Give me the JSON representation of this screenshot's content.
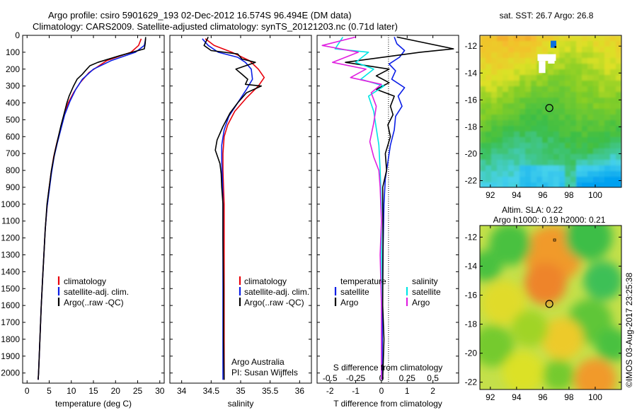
{
  "title_line1": "Argo profile: csiro 5901629_193 02-Dec-2012 16.574S 96.494E (DM data)",
  "title_line2": "Climatology: CARS2009. Satellite-adjusted climatology: synTS_20121203.nc (0.71d later)",
  "footer_stamp": "©IMOS 03-Aug-2017 23:25:38",
  "colors": {
    "climatology": "#e8000b",
    "satellite": "#0a1ee6",
    "argo": "#000000",
    "salinity_satellite": "#00e5e5",
    "salinity_argo": "#e020e0"
  },
  "chart_data": [
    {
      "id": "temperature",
      "type": "line",
      "xlabel": "temperature (deg C)",
      "ylim": [
        2060,
        0
      ],
      "xlim": [
        -1,
        31
      ],
      "xticks": [
        0,
        5,
        10,
        15,
        20,
        25,
        30
      ],
      "yticks": [
        0,
        100,
        200,
        300,
        400,
        500,
        600,
        700,
        800,
        900,
        1000,
        1100,
        1200,
        1300,
        1400,
        1500,
        1600,
        1700,
        1800,
        1900,
        2000
      ],
      "legend": [
        "climatology",
        "satellite-adj. clim.",
        "Argo(..raw -QC)"
      ],
      "series": [
        {
          "name": "climatology",
          "color": "climatology",
          "points": [
            [
              25.8,
              20
            ],
            [
              25.2,
              60
            ],
            [
              23.5,
              100
            ],
            [
              18,
              150
            ],
            [
              14,
              220
            ],
            [
              12,
              280
            ],
            [
              10.5,
              340
            ],
            [
              9.3,
              400
            ],
            [
              8.3,
              480
            ],
            [
              7.5,
              560
            ],
            [
              6.7,
              640
            ],
            [
              6,
              720
            ],
            [
              5.4,
              820
            ],
            [
              4.9,
              920
            ],
            [
              4.5,
              1020
            ],
            [
              4.1,
              1150
            ],
            [
              3.8,
              1300
            ],
            [
              3.5,
              1450
            ],
            [
              3.2,
              1600
            ],
            [
              2.9,
              1800
            ],
            [
              2.6,
              2000
            ],
            [
              2.5,
              2040
            ]
          ]
        },
        {
          "name": "satellite-adj. clim.",
          "color": "satellite",
          "points": [
            [
              26.8,
              20
            ],
            [
              26.5,
              60
            ],
            [
              24.5,
              100
            ],
            [
              19,
              150
            ],
            [
              15,
              200
            ],
            [
              12.5,
              260
            ],
            [
              11,
              320
            ],
            [
              9.7,
              390
            ],
            [
              8.5,
              470
            ],
            [
              7.6,
              560
            ],
            [
              6.8,
              640
            ],
            [
              6.1,
              720
            ],
            [
              5.5,
              820
            ],
            [
              5,
              920
            ],
            [
              4.5,
              1020
            ],
            [
              4.1,
              1150
            ],
            [
              3.8,
              1300
            ],
            [
              3.5,
              1450
            ],
            [
              3.2,
              1600
            ],
            [
              2.9,
              1800
            ],
            [
              2.6,
              2000
            ],
            [
              2.5,
              2040
            ]
          ]
        },
        {
          "name": "Argo(..raw -QC)",
          "color": "argo",
          "points": [
            [
              26.8,
              10
            ],
            [
              26.7,
              50
            ],
            [
              26.5,
              80
            ],
            [
              21,
              120
            ],
            [
              16,
              160
            ],
            [
              14.2,
              180
            ],
            [
              13.5,
              200
            ],
            [
              12.5,
              230
            ],
            [
              11.3,
              260
            ],
            [
              10.5,
              300
            ],
            [
              9.5,
              360
            ],
            [
              9,
              400
            ],
            [
              8.4,
              460
            ],
            [
              7.6,
              540
            ],
            [
              6.9,
              620
            ],
            [
              6.2,
              700
            ],
            [
              5.5,
              800
            ],
            [
              5,
              900
            ],
            [
              4.5,
              1000
            ],
            [
              4.1,
              1150
            ],
            [
              3.8,
              1300
            ],
            [
              3.5,
              1450
            ],
            [
              3.2,
              1600
            ],
            [
              2.9,
              1800
            ],
            [
              2.6,
              2000
            ],
            [
              2.5,
              2040
            ]
          ]
        }
      ]
    },
    {
      "id": "salinity",
      "type": "line",
      "xlabel": "salinity",
      "ylim": [
        2060,
        0
      ],
      "xlim": [
        33.8,
        36.2
      ],
      "xticks": [
        34,
        34.5,
        35,
        35.5,
        36
      ],
      "xtick_labels": [
        "34",
        "34.5",
        "35",
        "35.5",
        "36"
      ],
      "legend": [
        "climatology",
        "satellite-adj. clim.",
        "Argo(..raw -QC)"
      ],
      "annotation": [
        "Argo Australia",
        "PI: Susan Wijffels"
      ],
      "series": [
        {
          "name": "climatology",
          "color": "climatology",
          "points": [
            [
              34.4,
              20
            ],
            [
              34.55,
              60
            ],
            [
              34.85,
              100
            ],
            [
              35.15,
              150
            ],
            [
              35.3,
              200
            ],
            [
              35.4,
              250
            ],
            [
              35.3,
              300
            ],
            [
              35.1,
              370
            ],
            [
              34.9,
              450
            ],
            [
              34.78,
              530
            ],
            [
              34.72,
              600
            ],
            [
              34.7,
              700
            ],
            [
              34.7,
              800
            ],
            [
              34.71,
              900
            ],
            [
              34.72,
              1000
            ],
            [
              34.72,
              1200
            ],
            [
              34.72,
              1500
            ],
            [
              34.72,
              1800
            ],
            [
              34.72,
              2040
            ]
          ]
        },
        {
          "name": "satellite-adj. clim.",
          "color": "satellite",
          "points": [
            [
              34.35,
              20
            ],
            [
              34.45,
              60
            ],
            [
              34.62,
              100
            ],
            [
              34.95,
              130
            ],
            [
              35.08,
              160
            ],
            [
              35.18,
              200
            ],
            [
              35.2,
              260
            ],
            [
              35.1,
              320
            ],
            [
              34.95,
              400
            ],
            [
              34.8,
              480
            ],
            [
              34.72,
              560
            ],
            [
              34.68,
              650
            ],
            [
              34.68,
              750
            ],
            [
              34.69,
              850
            ],
            [
              34.7,
              1000
            ],
            [
              34.7,
              1200
            ],
            [
              34.7,
              1500
            ],
            [
              34.7,
              1800
            ],
            [
              34.7,
              2040
            ]
          ]
        },
        {
          "name": "Argo(..raw -QC)",
          "color": "argo",
          "points": [
            [
              34.45,
              10
            ],
            [
              34.38,
              60
            ],
            [
              34.5,
              90
            ],
            [
              34.95,
              110
            ],
            [
              35.02,
              140
            ],
            [
              35.25,
              160
            ],
            [
              34.92,
              200
            ],
            [
              35.02,
              230
            ],
            [
              35.12,
              260
            ],
            [
              35.08,
              290
            ],
            [
              35.35,
              300
            ],
            [
              35.1,
              340
            ],
            [
              34.95,
              400
            ],
            [
              34.82,
              460
            ],
            [
              34.7,
              540
            ],
            [
              34.6,
              620
            ],
            [
              34.57,
              680
            ],
            [
              34.65,
              760
            ],
            [
              34.67,
              820
            ],
            [
              34.68,
              900
            ],
            [
              34.7,
              1000
            ],
            [
              34.7,
              1200
            ],
            [
              34.71,
              1500
            ],
            [
              34.71,
              1800
            ],
            [
              34.72,
              2040
            ]
          ]
        }
      ]
    },
    {
      "id": "difference",
      "type": "line",
      "xlabel": "T difference from climatology",
      "xlabel_top": "S difference from climatology",
      "ylim": [
        2060,
        0
      ],
      "xlim": [
        -2.5,
        3
      ],
      "xticks": [
        -2,
        -1,
        0,
        1,
        2
      ],
      "xtick_labels": [
        "-2",
        "-1",
        "0",
        "1",
        "2"
      ],
      "xticks_S": [
        -0.5,
        -0.25,
        0,
        0.25,
        0.5
      ],
      "xtick_labels_S": [
        "-0.5",
        "-0.25",
        "0",
        "0.25",
        "0.5"
      ],
      "legend_temperature": {
        "header": "temperature",
        "items": [
          "satellite",
          "Argo"
        ]
      },
      "legend_salinity": {
        "header": "salinity",
        "items": [
          "satellite",
          "Argo"
        ]
      },
      "series": [
        {
          "name": "temperature satellite",
          "color": "satellite",
          "points": [
            [
              0.5,
              10
            ],
            [
              0.6,
              50
            ],
            [
              0.9,
              90
            ],
            [
              0.7,
              130
            ],
            [
              0.3,
              170
            ],
            [
              0.55,
              210
            ],
            [
              0.4,
              260
            ],
            [
              0.9,
              310
            ],
            [
              0.65,
              360
            ],
            [
              0.8,
              420
            ],
            [
              0.55,
              480
            ],
            [
              0.5,
              560
            ],
            [
              0.35,
              650
            ],
            [
              0.25,
              750
            ],
            [
              0.15,
              850
            ],
            [
              0.1,
              1000
            ],
            [
              0.06,
              1300
            ],
            [
              0.04,
              1600
            ],
            [
              0.03,
              2040
            ]
          ]
        },
        {
          "name": "temperature Argo",
          "color": "argo",
          "points": [
            [
              0.6,
              10
            ],
            [
              2.8,
              80
            ],
            [
              1.5,
              100
            ],
            [
              -1.4,
              160
            ],
            [
              0.3,
              200
            ],
            [
              -0.2,
              240
            ],
            [
              0.3,
              280
            ],
            [
              -0.2,
              320
            ],
            [
              0.5,
              360
            ],
            [
              0.35,
              420
            ],
            [
              0.45,
              470
            ],
            [
              0.25,
              530
            ],
            [
              0.35,
              600
            ],
            [
              0.15,
              700
            ],
            [
              0.2,
              800
            ],
            [
              0.05,
              900
            ],
            [
              0.06,
              1200
            ],
            [
              0.05,
              1600
            ],
            [
              0.1,
              1800
            ],
            [
              0.05,
              2040
            ]
          ]
        },
        {
          "name": "salinity satellite",
          "color": "salinity_satellite",
          "points": [
            [
              -1.5,
              10
            ],
            [
              -1.8,
              80
            ],
            [
              -0.5,
              100
            ],
            [
              -1.0,
              160
            ],
            [
              -0.3,
              200
            ],
            [
              -0.8,
              260
            ],
            [
              0.1,
              300
            ],
            [
              -0.5,
              360
            ],
            [
              -0.3,
              450
            ],
            [
              -0.2,
              550
            ],
            [
              -0.1,
              650
            ],
            [
              -0.05,
              800
            ],
            [
              0,
              1000
            ],
            [
              0,
              1300
            ],
            [
              0,
              1600
            ],
            [
              0,
              2040
            ]
          ]
        },
        {
          "name": "salinity Argo",
          "color": "salinity_argo",
          "points": [
            [
              -1.0,
              10
            ],
            [
              -2.3,
              60
            ],
            [
              -0.9,
              100
            ],
            [
              -1.9,
              160
            ],
            [
              -0.6,
              200
            ],
            [
              -1.2,
              250
            ],
            [
              0,
              290
            ],
            [
              -0.4,
              340
            ],
            [
              -0.2,
              420
            ],
            [
              -0.3,
              520
            ],
            [
              -0.45,
              630
            ],
            [
              -0.3,
              720
            ],
            [
              -0.1,
              800
            ],
            [
              -0.05,
              900
            ],
            [
              0,
              1100
            ],
            [
              -0.05,
              1300
            ],
            [
              0,
              1600
            ],
            [
              0,
              2040
            ]
          ]
        }
      ]
    },
    {
      "id": "sst_map",
      "type": "heatmap",
      "title": "sat. SST: 26.7 Argo: 26.8",
      "xlim": [
        91.2,
        102
      ],
      "ylim": [
        -22.5,
        -11.2
      ],
      "xticks": [
        92,
        94,
        96,
        98,
        100
      ],
      "yticks": [
        -12,
        -14,
        -16,
        -18,
        -20,
        -22
      ],
      "argo_position": [
        96.5,
        -16.6
      ]
    },
    {
      "id": "sla_map",
      "type": "heatmap",
      "title_line1": "Altim. SLA: 0.22",
      "title_line2": "Argo h1000: 0.19 h2000: 0.21",
      "xlim": [
        91.2,
        102
      ],
      "ylim": [
        -22.5,
        -11.2
      ],
      "xticks": [
        92,
        94,
        96,
        98,
        100
      ],
      "yticks": [
        -12,
        -14,
        -16,
        -18,
        -20,
        -22
      ],
      "argo_position": [
        96.5,
        -16.6
      ]
    }
  ]
}
